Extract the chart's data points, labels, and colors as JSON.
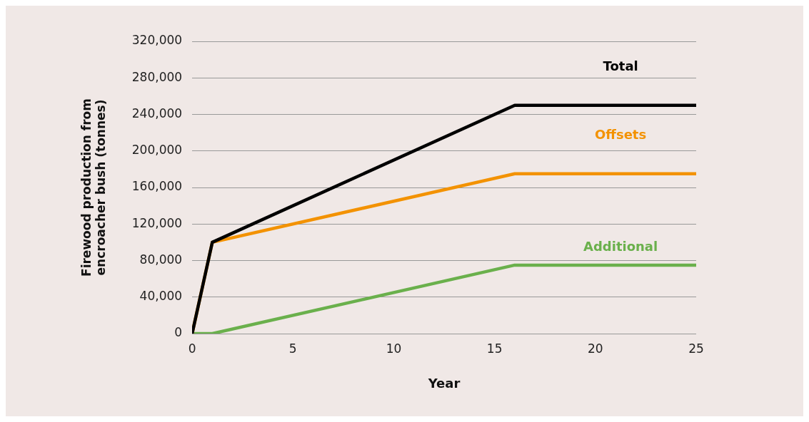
{
  "chart_data": {
    "type": "line",
    "xlabel": "Year",
    "ylabel": "Firewood production from encroacher bush (tonnes)",
    "x": [
      0,
      1,
      16,
      25
    ],
    "series": [
      {
        "name": "Total",
        "color": "#000000",
        "values": [
          0,
          100000,
          250000,
          250000
        ]
      },
      {
        "name": "Offsets",
        "color": "#f39200",
        "values": [
          0,
          100000,
          175000,
          175000
        ]
      },
      {
        "name": "Additional",
        "color": "#6ab04c",
        "values": [
          0,
          0,
          75000,
          75000
        ]
      }
    ],
    "xlim": [
      0,
      25
    ],
    "xticks": [
      0,
      5,
      10,
      15,
      20,
      25
    ],
    "ylim": [
      0,
      320000
    ],
    "yticks": [
      0,
      {
        "value": 40000,
        "label": "40,000"
      },
      {
        "value": 80000,
        "label": "80,000"
      },
      {
        "value": 120000,
        "label": "120,000"
      },
      {
        "value": 160000,
        "label": "160,000"
      },
      {
        "value": 200000,
        "label": "200,000"
      },
      {
        "value": 240000,
        "label": "240,000"
      },
      {
        "value": 280000,
        "label": "280,000"
      },
      {
        "value": 320000,
        "label": "320,000"
      }
    ],
    "grid": "y",
    "legend": false,
    "marker": "none",
    "line_style": "solid"
  }
}
